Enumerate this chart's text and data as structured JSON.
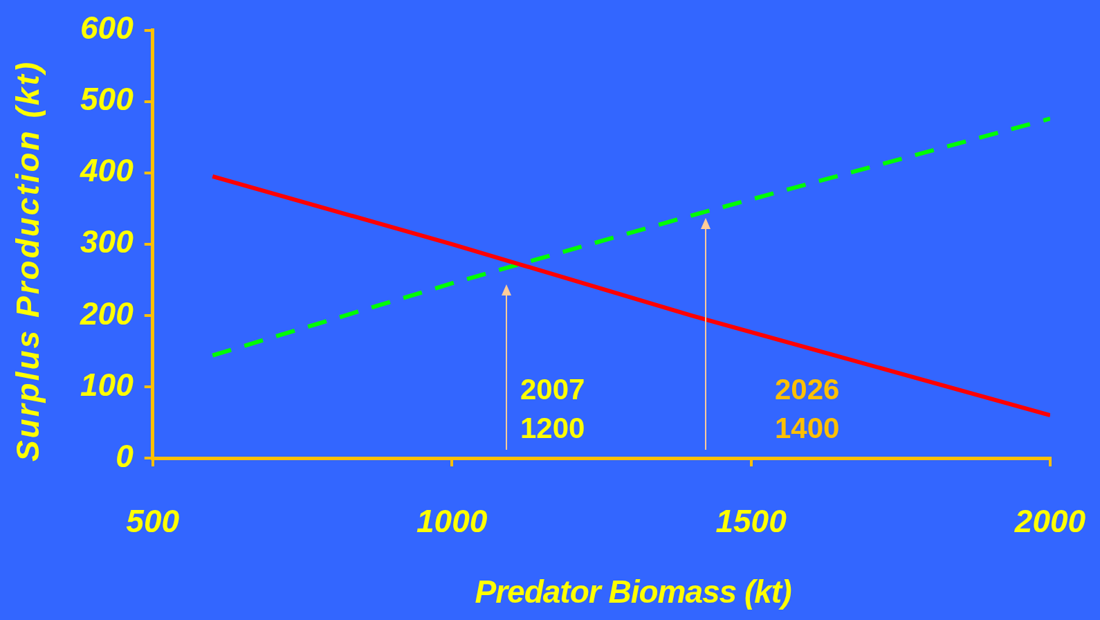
{
  "chart_data": {
    "type": "line",
    "xlabel": "Predator Biomass (kt)",
    "ylabel": "Surplus Production (kt)",
    "xlim": [
      500,
      2000
    ],
    "xticks": [
      500,
      1000,
      1500,
      2000
    ],
    "ylim": [
      0,
      600
    ],
    "yticks": [
      0,
      100,
      200,
      300,
      400,
      500,
      600
    ],
    "grid": false,
    "legend": false,
    "marker": "none",
    "series": [
      {
        "color": "#ff0000",
        "line_style": "solid",
        "x": [
          600,
          1000,
          1400,
          2000
        ],
        "values": [
          395,
          300,
          200,
          60
        ]
      },
      {
        "color": "#00ff00",
        "line_style": "dashed",
        "x": [
          600,
          1000,
          1400,
          2000
        ],
        "values": [
          144,
          245,
          340,
          476
        ]
      }
    ],
    "annotations": [
      "2007\n1200",
      "2026\n1400"
    ]
  }
}
